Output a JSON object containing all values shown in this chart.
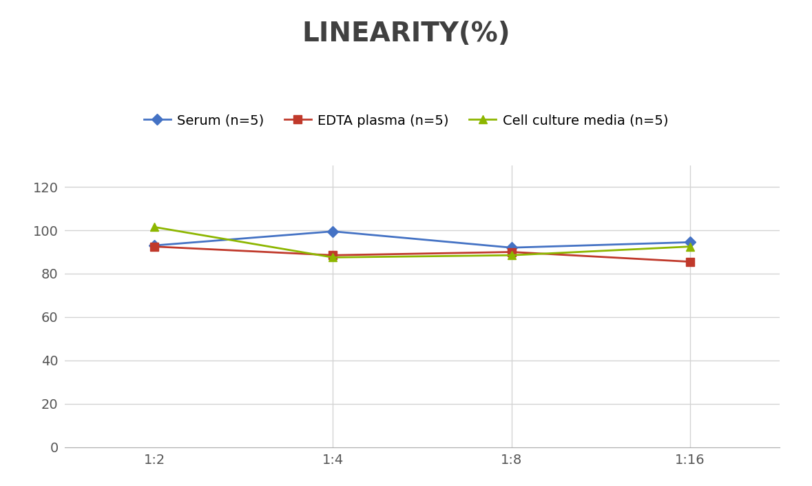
{
  "title": "LINEARITY(%)",
  "title_fontsize": 28,
  "title_fontweight": "bold",
  "title_color": "#404040",
  "x_labels": [
    "1:2",
    "1:4",
    "1:8",
    "1:16"
  ],
  "x_positions": [
    0,
    1,
    2,
    3
  ],
  "series": [
    {
      "label": "Serum (n=5)",
      "values": [
        93,
        99.5,
        92,
        94.5
      ],
      "color": "#4472C4",
      "marker": "D",
      "marker_size": 8,
      "linewidth": 2.0
    },
    {
      "label": "EDTA plasma (n=5)",
      "values": [
        92.5,
        88.5,
        90,
        85.5
      ],
      "color": "#C0392B",
      "marker": "s",
      "marker_size": 8,
      "linewidth": 2.0
    },
    {
      "label": "Cell culture media (n=5)",
      "values": [
        101.5,
        87.5,
        88.5,
        92.5
      ],
      "color": "#8DB600",
      "marker": "^",
      "marker_size": 8,
      "linewidth": 2.0
    }
  ],
  "ylim": [
    0,
    130
  ],
  "yticks": [
    0,
    20,
    40,
    60,
    80,
    100,
    120
  ],
  "grid_color": "#D3D3D3",
  "background_color": "#FFFFFF",
  "legend_fontsize": 14,
  "tick_fontsize": 14
}
